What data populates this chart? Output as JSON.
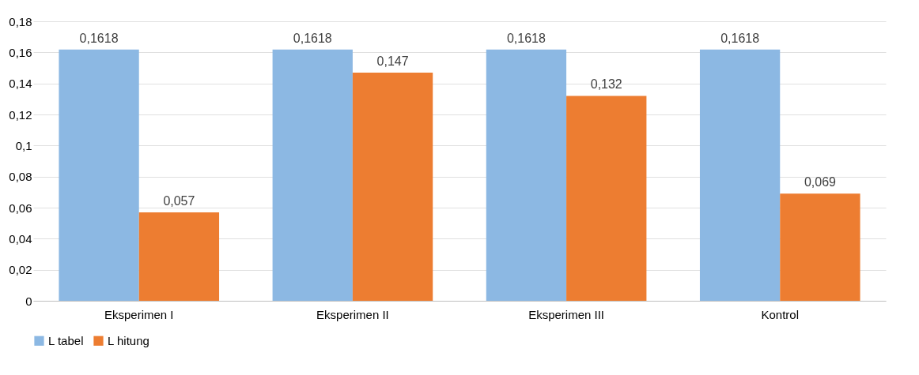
{
  "chart_data": {
    "type": "bar",
    "categories": [
      "Eksperimen I",
      "Eksperimen II",
      "Eksperimen III",
      "Kontrol"
    ],
    "series": [
      {
        "name": "L tabel",
        "color": "#8cb8e3",
        "values": [
          0.1618,
          0.1618,
          0.1618,
          0.1618
        ],
        "value_labels": [
          "0,1618",
          "0,1618",
          "0,1618",
          "0,1618"
        ]
      },
      {
        "name": "L hitung",
        "color": "#ed7d31",
        "values": [
          0.057,
          0.147,
          0.132,
          0.069
        ],
        "value_labels": [
          "0,057",
          "0,147",
          "0,132",
          "0,069"
        ]
      }
    ],
    "ylim": [
      0,
      0.18
    ],
    "yticks": [
      0,
      {
        "value": 0.02,
        "label": "0,02"
      },
      {
        "value": 0.04,
        "label": "0,04"
      },
      {
        "value": 0.06,
        "label": "0,06"
      },
      {
        "value": 0.08,
        "label": "0,08"
      },
      {
        "value": 0.1,
        "label": "0,1"
      },
      {
        "value": 0.12,
        "label": "0,12"
      },
      {
        "value": 0.14,
        "label": "0,14"
      },
      {
        "value": 0.16,
        "label": "0,16"
      },
      {
        "value": 0.18,
        "label": "0,18"
      }
    ],
    "grid": "y",
    "legend": "bottom"
  }
}
